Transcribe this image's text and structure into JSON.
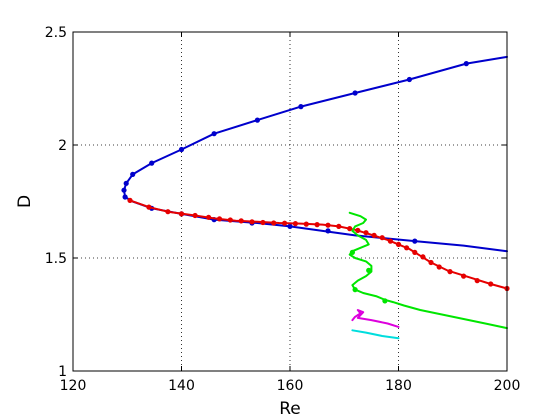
{
  "chart_data": {
    "type": "line",
    "xlabel": "Re",
    "ylabel": "D",
    "xlim": [
      120,
      200
    ],
    "ylim": [
      1,
      2.5
    ],
    "xticks": [
      120,
      140,
      160,
      180,
      200
    ],
    "yticks": [
      1,
      1.5,
      2,
      2.5
    ],
    "xtick_labels": [
      "120",
      "140",
      "160",
      "180",
      "200"
    ],
    "ytick_labels": [
      "1",
      "1.5",
      "2",
      "2.5"
    ],
    "grid": true,
    "series": [
      {
        "color": "#0000cc",
        "line": [
          [
            200,
            2.39
          ],
          [
            192.5,
            2.36
          ],
          [
            182,
            2.29
          ],
          [
            172,
            2.23
          ],
          [
            162,
            2.17
          ],
          [
            154,
            2.11
          ],
          [
            146,
            2.05
          ],
          [
            140,
            1.98
          ],
          [
            134.5,
            1.92
          ],
          [
            131,
            1.87
          ],
          [
            129.8,
            1.83
          ],
          [
            129.4,
            1.8
          ],
          [
            129.6,
            1.77
          ],
          [
            131,
            1.75
          ],
          [
            134.5,
            1.72
          ],
          [
            140,
            1.695
          ],
          [
            146,
            1.67
          ],
          [
            154,
            1.655
          ],
          [
            160,
            1.64
          ],
          [
            166,
            1.62
          ],
          [
            172,
            1.6
          ],
          [
            183,
            1.575
          ],
          [
            192,
            1.555
          ],
          [
            200,
            1.53
          ]
        ],
        "markers": [
          [
            192.5,
            2.36
          ],
          [
            182,
            2.29
          ],
          [
            172,
            2.23
          ],
          [
            162,
            2.17
          ],
          [
            154,
            2.11
          ],
          [
            146,
            2.05
          ],
          [
            140,
            1.98
          ],
          [
            134.5,
            1.92
          ],
          [
            131,
            1.87
          ],
          [
            129.8,
            1.83
          ],
          [
            129.4,
            1.8
          ],
          [
            129.6,
            1.77
          ],
          [
            134.5,
            1.72
          ],
          [
            140,
            1.695
          ],
          [
            146,
            1.67
          ],
          [
            153,
            1.655
          ],
          [
            160,
            1.64
          ],
          [
            167,
            1.62
          ],
          [
            183,
            1.575
          ]
        ]
      },
      {
        "color": "#e60000",
        "line": [
          [
            130.5,
            1.755
          ],
          [
            134,
            1.725
          ],
          [
            137.5,
            1.705
          ],
          [
            142,
            1.69
          ],
          [
            146,
            1.675
          ],
          [
            150,
            1.665
          ],
          [
            154,
            1.66
          ],
          [
            158,
            1.655
          ],
          [
            162,
            1.652
          ],
          [
            166,
            1.648
          ],
          [
            169,
            1.64
          ],
          [
            172,
            1.625
          ],
          [
            174,
            1.61
          ],
          [
            176,
            1.595
          ],
          [
            178,
            1.58
          ],
          [
            180,
            1.56
          ],
          [
            182,
            1.54
          ],
          [
            184,
            1.51
          ],
          [
            186,
            1.48
          ],
          [
            189,
            1.445
          ],
          [
            193,
            1.415
          ],
          [
            197,
            1.385
          ],
          [
            200,
            1.365
          ]
        ],
        "markers": [
          [
            130.5,
            1.755
          ],
          [
            134,
            1.725
          ],
          [
            137.5,
            1.705
          ],
          [
            140,
            1.695
          ],
          [
            142.5,
            1.688
          ],
          [
            145,
            1.68
          ],
          [
            147,
            1.673
          ],
          [
            149,
            1.668
          ],
          [
            151,
            1.664
          ],
          [
            153,
            1.66
          ],
          [
            155,
            1.657
          ],
          [
            157,
            1.655
          ],
          [
            159,
            1.654
          ],
          [
            161,
            1.652
          ],
          [
            163,
            1.65
          ],
          [
            165,
            1.648
          ],
          [
            167,
            1.645
          ],
          [
            169,
            1.64
          ],
          [
            171,
            1.63
          ],
          [
            172.5,
            1.622
          ],
          [
            174,
            1.612
          ],
          [
            175.5,
            1.6
          ],
          [
            177,
            1.59
          ],
          [
            178.5,
            1.575
          ],
          [
            180,
            1.56
          ],
          [
            181.5,
            1.545
          ],
          [
            183,
            1.525
          ],
          [
            184.5,
            1.505
          ],
          [
            186,
            1.48
          ],
          [
            187.5,
            1.46
          ],
          [
            189.5,
            1.44
          ],
          [
            192,
            1.42
          ],
          [
            194.5,
            1.4
          ],
          [
            197,
            1.385
          ],
          [
            200,
            1.365
          ]
        ]
      },
      {
        "color": "#00e600",
        "line": [
          [
            171,
            1.7
          ],
          [
            173,
            1.685
          ],
          [
            174,
            1.67
          ],
          [
            173.5,
            1.655
          ],
          [
            172,
            1.64
          ],
          [
            171.5,
            1.62
          ],
          [
            172.5,
            1.6
          ],
          [
            174,
            1.58
          ],
          [
            174.5,
            1.56
          ],
          [
            173,
            1.545
          ],
          [
            171.5,
            1.53
          ],
          [
            171,
            1.515
          ],
          [
            172,
            1.5
          ],
          [
            174,
            1.485
          ],
          [
            175,
            1.465
          ],
          [
            175,
            1.44
          ],
          [
            174,
            1.42
          ],
          [
            172.5,
            1.4
          ],
          [
            171.5,
            1.38
          ],
          [
            172,
            1.36
          ],
          [
            173.5,
            1.345
          ],
          [
            176,
            1.33
          ],
          [
            177.5,
            1.315
          ],
          [
            179,
            1.305
          ],
          [
            181,
            1.29
          ],
          [
            184,
            1.27
          ],
          [
            188,
            1.25
          ],
          [
            192,
            1.23
          ],
          [
            196,
            1.21
          ],
          [
            200,
            1.19
          ]
        ],
        "markers": [
          [
            171.5,
            1.525
          ],
          [
            174.5,
            1.445
          ],
          [
            172,
            1.36
          ],
          [
            177.5,
            1.31
          ]
        ]
      },
      {
        "color": "#dd00dd",
        "line": [
          [
            171.5,
            1.225
          ],
          [
            172,
            1.24
          ],
          [
            173,
            1.255
          ],
          [
            172.5,
            1.27
          ],
          [
            173.5,
            1.26
          ],
          [
            172.5,
            1.235
          ],
          [
            175,
            1.225
          ],
          [
            178,
            1.21
          ],
          [
            180,
            1.195
          ]
        ],
        "markers": []
      },
      {
        "color": "#00dddd",
        "line": [
          [
            171.5,
            1.18
          ],
          [
            174,
            1.17
          ],
          [
            177,
            1.155
          ],
          [
            180,
            1.145
          ]
        ],
        "markers": []
      }
    ]
  }
}
